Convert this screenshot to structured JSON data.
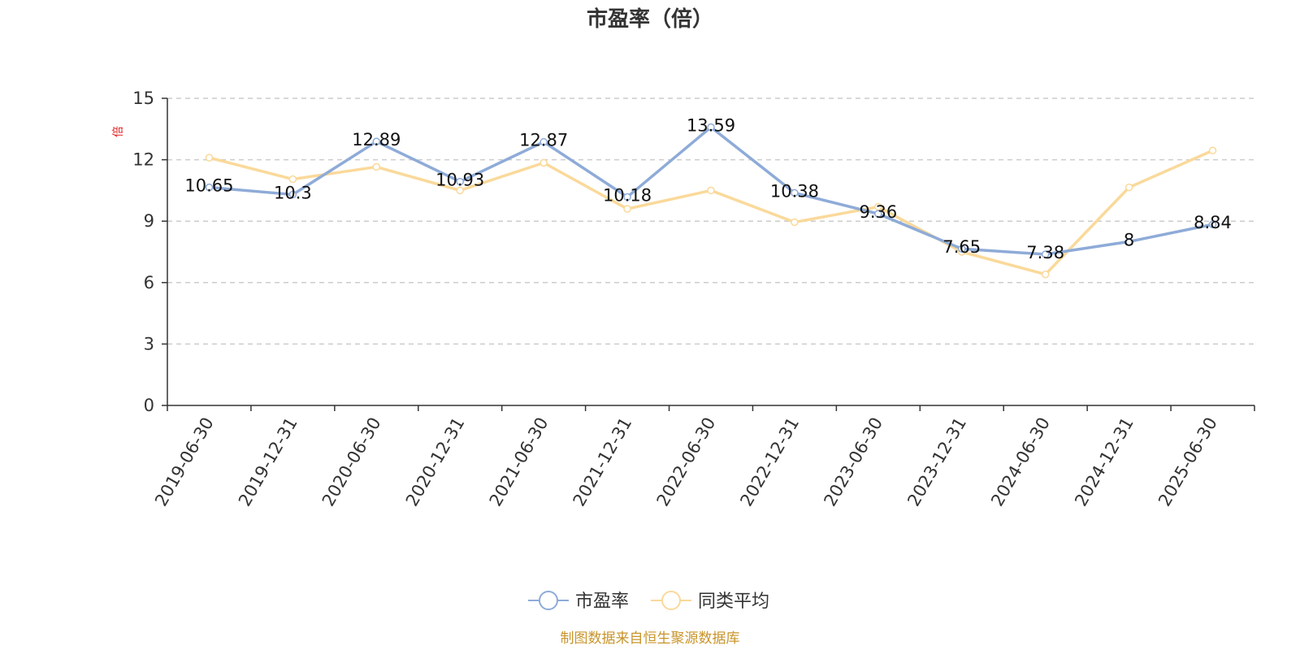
{
  "title": "市盈率（倍）",
  "unit_label": "倍",
  "footer": "制图数据来自恒生聚源数据库",
  "colors": {
    "series1": "#8eabd8",
    "series2": "#fad99a",
    "footer": "#c8942a",
    "unit": "#e02020",
    "grid": "#cccccc",
    "axis": "#333333"
  },
  "chart_data": {
    "type": "line",
    "title": "市盈率（倍）",
    "ylabel": "倍",
    "xlabel": "",
    "ylim": [
      0,
      15
    ],
    "yticks": [
      0,
      3,
      6,
      9,
      12,
      15
    ],
    "grid": true,
    "legend_position": "bottom",
    "categories": [
      "2019-06-30",
      "2019-12-31",
      "2020-06-30",
      "2020-12-31",
      "2021-06-30",
      "2021-12-31",
      "2022-06-30",
      "2022-12-31",
      "2023-06-30",
      "2023-12-31",
      "2024-06-30",
      "2024-12-31",
      "2025-06-30"
    ],
    "series": [
      {
        "name": "市盈率",
        "values": [
          10.65,
          10.3,
          12.89,
          10.93,
          12.87,
          10.18,
          13.59,
          10.38,
          9.36,
          7.65,
          7.38,
          8,
          8.84
        ],
        "labels": [
          "10.65",
          "10.3",
          "12.89",
          "10.93",
          "12.87",
          "10.18",
          "13.59",
          "10.38",
          "9.36",
          "7.65",
          "7.38",
          "8",
          "8.84"
        ]
      },
      {
        "name": "同类平均",
        "values": [
          12.1,
          11.05,
          11.65,
          10.5,
          11.85,
          9.6,
          10.5,
          8.95,
          9.7,
          7.5,
          6.4,
          10.65,
          12.45
        ]
      }
    ]
  }
}
